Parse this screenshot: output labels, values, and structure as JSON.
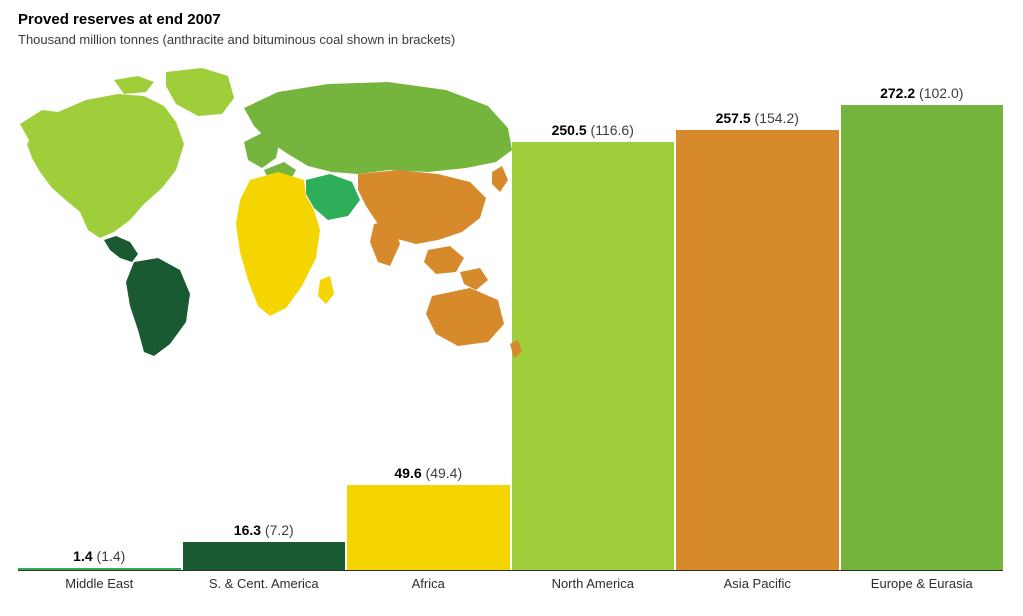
{
  "header": {
    "title": "Proved reserves at end 2007",
    "subtitle": "Thousand million tonnes (anthracite and bituminous coal shown in brackets)"
  },
  "chart": {
    "type": "bar",
    "ymax": 290,
    "background_color": "#ffffff",
    "axis_font_size": 13,
    "label_font_size": 14,
    "bars": [
      {
        "region": "Middle East",
        "value": 1.4,
        "bracket": 1.4,
        "color": "#2fae59",
        "label": "1.4",
        "sublabel": "(1.4)"
      },
      {
        "region": "S. & Cent. America",
        "value": 16.3,
        "bracket": 7.2,
        "color": "#1a5a33",
        "label": "16.3",
        "sublabel": "(7.2)"
      },
      {
        "region": "Africa",
        "value": 49.6,
        "bracket": 49.4,
        "color": "#f4d500",
        "label": "49.6",
        "sublabel": "(49.4)"
      },
      {
        "region": "North America",
        "value": 250.5,
        "bracket": 116.6,
        "color": "#9fce3b",
        "label": "250.5",
        "sublabel": "(116.6)"
      },
      {
        "region": "Asia Pacific",
        "value": 257.5,
        "bracket": 154.2,
        "color": "#d78a2b",
        "label": "257.5",
        "sublabel": "(154.2)"
      },
      {
        "region": "Europe & Eurasia",
        "value": 272.2,
        "bracket": 102.0,
        "color": "#76b53d",
        "label": "272.2",
        "sublabel": "(102.0)"
      }
    ]
  },
  "map": {
    "regions": {
      "north_america": "#9fce3b",
      "s_cent_america": "#1a5a33",
      "europe_eurasia": "#76b53d",
      "middle_east": "#2fae59",
      "africa": "#f4d500",
      "asia_pacific": "#d78a2b"
    }
  }
}
